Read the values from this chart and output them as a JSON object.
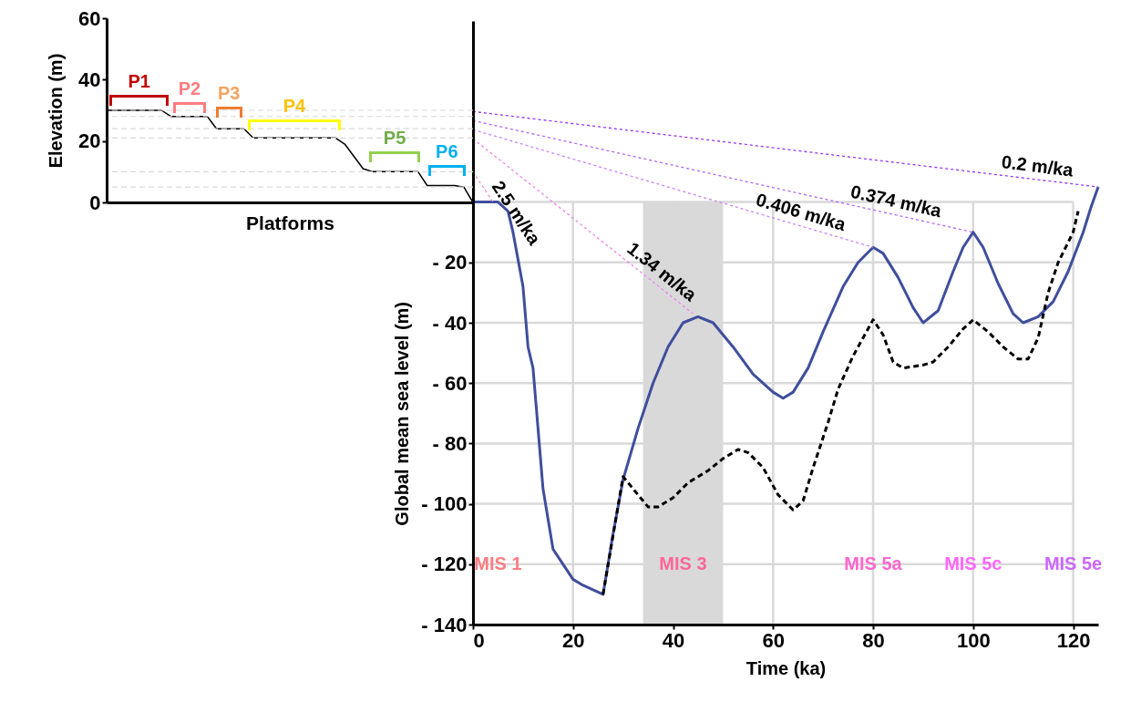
{
  "chart_data": [
    {
      "type": "line",
      "ylabel": "Elevation (m)",
      "xlabel": "Platforms",
      "categories": [
        null,
        null,
        null,
        null,
        null,
        null,
        null,
        null,
        null,
        null,
        null,
        null,
        null,
        null,
        null,
        null,
        null,
        null,
        null,
        null,
        null,
        null,
        null,
        null,
        null,
        null,
        null,
        null,
        null,
        null,
        null,
        null,
        null,
        null,
        null,
        null,
        null,
        null,
        null,
        null,
        null
      ],
      "series": [
        {
          "color": "#000000",
          "values": [
            30,
            30,
            30,
            30,
            30,
            30,
            30,
            28,
            28,
            28,
            28,
            28,
            24,
            24,
            24,
            24,
            21,
            21,
            21,
            21,
            21,
            21,
            21,
            21,
            21,
            21,
            19,
            15,
            11,
            10,
            10,
            10,
            10,
            10,
            10,
            5.5,
            5.5,
            5.5,
            5.5,
            5,
            0
          ]
        }
      ],
      "ylim": [
        0,
        60
      ],
      "yticks": [
        0,
        20,
        40,
        60
      ],
      "tick_labels": "y",
      "marker": "none",
      "ref_lines": [
        {
          "axis": "y",
          "value": 30,
          "color": "#d9d9d9",
          "line_style": "dashed"
        },
        {
          "axis": "y",
          "value": 28,
          "color": "#d9d9d9",
          "line_style": "dashed"
        },
        {
          "axis": "y",
          "value": 24,
          "color": "#d9d9d9",
          "line_style": "dashed"
        },
        {
          "axis": "y",
          "value": 21,
          "color": "#d9d9d9",
          "line_style": "dashed"
        },
        {
          "axis": "y",
          "value": 10,
          "color": "#d9d9d9",
          "line_style": "dashed"
        },
        {
          "axis": "y",
          "value": 5,
          "color": "#d9d9d9",
          "line_style": "dashed"
        }
      ],
      "annotations": [
        "P1",
        "P2",
        "P3",
        "P4",
        "P5",
        "P6"
      ]
    },
    {
      "type": "line",
      "xlabel": "Time (ka)",
      "ylabel": "Global mean sea level (m)",
      "xlim": [
        0,
        125
      ],
      "ylim": [
        -140,
        60
      ],
      "xticks": [
        0,
        20,
        40,
        60,
        80,
        100,
        120
      ],
      "yticks": [
        {
          "value": -140,
          "label": "- 140"
        },
        {
          "value": -120,
          "label": "- 120"
        },
        {
          "value": -100,
          "label": "- 100"
        },
        {
          "value": -80,
          "label": "- 80"
        },
        {
          "value": -60,
          "label": "- 60"
        },
        {
          "value": -40,
          "label": "- 40"
        },
        {
          "value": -20,
          "label": "- 20"
        },
        {
          "value": 0,
          "label": null
        }
      ],
      "grid": true,
      "marker": "none",
      "bands": [
        {
          "axis": "x",
          "from": 34,
          "to": 50,
          "color": "#d9d9d9"
        }
      ],
      "series": [
        {
          "color": "#3f4e9c",
          "line_style": "solid",
          "x": [
            0,
            5,
            7,
            8,
            10,
            11,
            12,
            13,
            14,
            15,
            16,
            18,
            20,
            22,
            26,
            28,
            30,
            33,
            36,
            39,
            42,
            45,
            48,
            52,
            56,
            60,
            62,
            64,
            67,
            70,
            74,
            77,
            80,
            82,
            85,
            88,
            90,
            93,
            96,
            98,
            100,
            102,
            105,
            108,
            110,
            113,
            116,
            119,
            122,
            123.5,
            125
          ],
          "values": [
            0,
            0,
            -3,
            -10,
            -28,
            -48,
            -55,
            -75,
            -95,
            -105,
            -115,
            -120,
            -125,
            -127,
            -130,
            -110,
            -92,
            -75,
            -60,
            -48,
            -40,
            -38,
            -40,
            -48,
            -57,
            -63,
            -65,
            -63,
            -55,
            -43,
            -28,
            -20,
            -15,
            -17,
            -25,
            -35,
            -40,
            -36,
            -23,
            -15,
            -10,
            -15,
            -27,
            -37,
            -40,
            -38,
            -33,
            -23,
            -10,
            -2,
            5
          ]
        },
        {
          "color": "#000000",
          "line_style": "dashed",
          "x": [
            26,
            30,
            32,
            35,
            37,
            40,
            43,
            47,
            50,
            53,
            55,
            58,
            61,
            64,
            66,
            68,
            71,
            73,
            76,
            78,
            80,
            82,
            84,
            86,
            90,
            92,
            95,
            98,
            100,
            103,
            106,
            109,
            111,
            113,
            115,
            117,
            120,
            121
          ],
          "values": [
            -130,
            -91,
            -95,
            -101,
            -101,
            -98,
            -93,
            -89,
            -85,
            -82,
            -83,
            -88,
            -97,
            -102,
            -99,
            -88,
            -73,
            -62,
            -51,
            -45,
            -39,
            -44,
            -53,
            -55,
            -54,
            -53,
            -48,
            -42,
            -39,
            -43,
            -48,
            -52,
            -52,
            -45,
            -30,
            -20,
            -10,
            -3
          ]
        },
        {
          "name": "0.2 m/ka",
          "color": "#9933ff",
          "line_style": "dotted",
          "x": [
            0,
            125
          ],
          "values": [
            30,
            5
          ]
        },
        {
          "name": "0.374 m/ka",
          "color": "#b366ff",
          "line_style": "dotted",
          "x": [
            0,
            100
          ],
          "values": [
            27,
            -10
          ]
        },
        {
          "name": "0.406 m/ka",
          "color": "#cc80ff",
          "line_style": "dotted",
          "x": [
            0,
            80
          ],
          "values": [
            24,
            -15
          ]
        },
        {
          "name": "1.34 m/ka",
          "color": "#ee82ee",
          "line_style": "dotted",
          "x": [
            0,
            44
          ],
          "values": [
            21,
            -37
          ]
        },
        {
          "name": "2.5 m/ka",
          "color": "#ff80c0",
          "line_style": "dotted",
          "x": [
            0,
            4
          ],
          "values": [
            10,
            0
          ]
        }
      ],
      "annotations": [
        "MIS 1",
        "MIS 3",
        "MIS 5a",
        "MIS 5c",
        "MIS 5e"
      ]
    }
  ]
}
